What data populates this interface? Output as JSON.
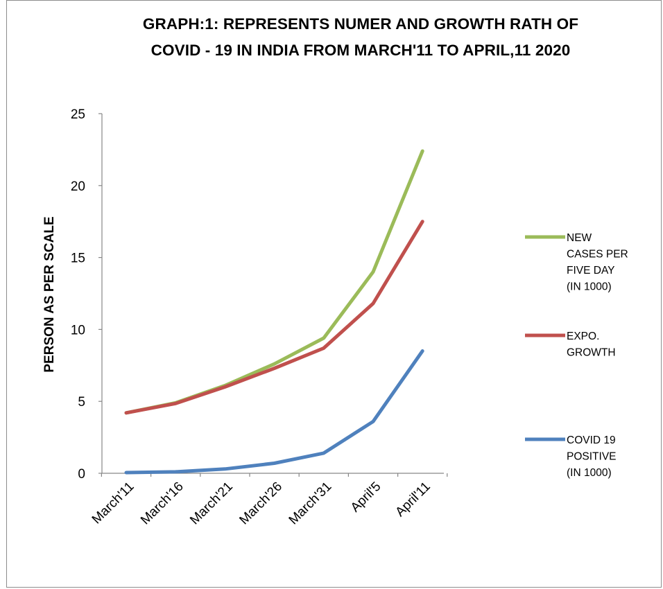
{
  "chart_data": {
    "type": "line",
    "title_lines": [
      "GRAPH:1: REPRESENTS NUMER AND GROWTH RATH OF",
      "COVID - 19 IN INDIA FROM MARCH'11 TO APRIL,11 2020"
    ],
    "xlabel": "",
    "ylabel": "PERSON AS PER SCALE",
    "categories": [
      "March'11",
      "March'16",
      "March'21",
      "March'26",
      "March'31",
      "April'5",
      "April'11"
    ],
    "ylim": [
      0,
      25
    ],
    "yticks": [
      0,
      5,
      10,
      15,
      20,
      25
    ],
    "grid": false,
    "legend_position": "right",
    "series": [
      {
        "name_lines": [
          "NEW",
          "CASES PER",
          "FIVE DAY",
          "(IN 1000)"
        ],
        "color": "#9BBB59",
        "values": [
          4.2,
          4.9,
          6.1,
          7.6,
          9.4,
          14.0,
          22.4
        ]
      },
      {
        "name_lines": [
          "EXPO.",
          "GROWTH"
        ],
        "color": "#C0504D",
        "values": [
          4.2,
          4.85,
          6.0,
          7.3,
          8.7,
          11.8,
          17.5
        ]
      },
      {
        "name_lines": [
          "COVID 19",
          "POSITIVE",
          "(IN 1000)"
        ],
        "color": "#4F81BD",
        "values": [
          0.05,
          0.1,
          0.3,
          0.7,
          1.4,
          3.6,
          8.5
        ]
      }
    ]
  }
}
